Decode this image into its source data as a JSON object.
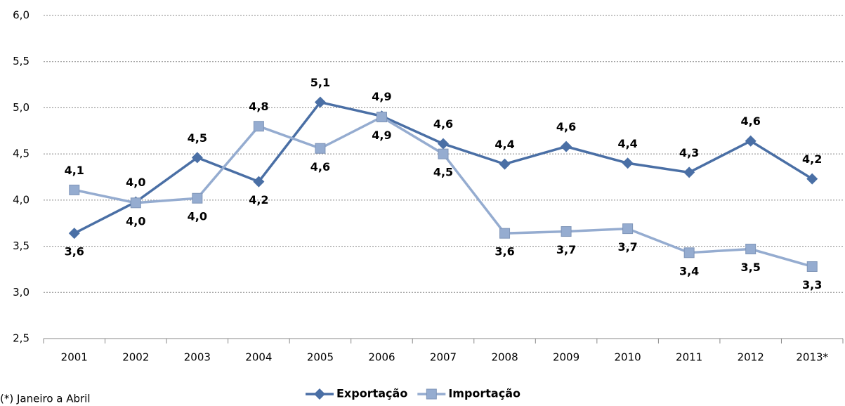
{
  "chart_data": {
    "type": "line",
    "categories": [
      "2001",
      "2002",
      "2003",
      "2004",
      "2005",
      "2006",
      "2007",
      "2008",
      "2009",
      "2010",
      "2011",
      "2012",
      "2013*"
    ],
    "series": [
      {
        "name": "Exportação",
        "color": "#4a6fa5",
        "marker": "diamond",
        "values": [
          3.64,
          3.98,
          4.46,
          4.2,
          5.06,
          4.91,
          4.61,
          4.39,
          4.58,
          4.4,
          4.3,
          4.64,
          4.23
        ],
        "value_labels": [
          "3,6",
          "4,0",
          "4,5",
          "4,2",
          "5,1",
          "4,9",
          "4,6",
          "4,4",
          "4,6",
          "4,4",
          "4,3",
          "4,6",
          "4,2"
        ]
      },
      {
        "name": "Importação",
        "color": "#95acd0",
        "marker": "square",
        "values": [
          4.11,
          3.97,
          4.02,
          4.8,
          4.56,
          4.9,
          4.5,
          3.64,
          3.66,
          3.69,
          3.43,
          3.47,
          3.28
        ],
        "value_labels": [
          "4,1",
          "4,0",
          "4,0",
          "4,8",
          "4,6",
          "4,9",
          "4,5",
          "3,6",
          "3,7",
          "3,7",
          "3,4",
          "3,5",
          "3,3"
        ]
      }
    ],
    "ylim": [
      2.5,
      6.0
    ],
    "yticks": [
      {
        "value": 2.5,
        "label": "2,5"
      },
      {
        "value": 3.0,
        "label": "3,0"
      },
      {
        "value": 3.5,
        "label": "3,5"
      },
      {
        "value": 4.0,
        "label": "4,0"
      },
      {
        "value": 4.5,
        "label": "4,5"
      },
      {
        "value": 5.0,
        "label": "5,0"
      },
      {
        "value": 5.5,
        "label": "5,5"
      },
      {
        "value": 6.0,
        "label": "6,0"
      }
    ],
    "grid": true,
    "legend": "bottom",
    "note": "(*) Janeiro a Abril"
  }
}
